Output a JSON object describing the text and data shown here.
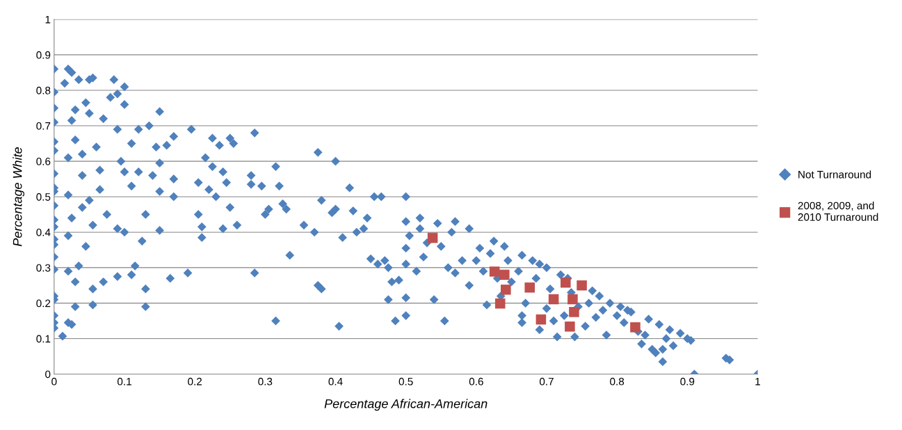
{
  "chart_data": {
    "type": "scatter",
    "xlabel": "Percentage African-American",
    "ylabel": "Percentage White",
    "xlim": [
      0,
      1
    ],
    "ylim": [
      0,
      1
    ],
    "xticks": [
      0,
      0.1,
      0.2,
      0.3,
      0.4,
      0.5,
      0.6,
      0.7,
      0.8,
      0.9,
      1
    ],
    "yticks": [
      0,
      0.1,
      0.2,
      0.3,
      0.4,
      0.5,
      0.6,
      0.7,
      0.8,
      0.9,
      1
    ],
    "grid": "y",
    "legend": "right",
    "series": [
      {
        "name": "Not Turnaround",
        "color": "#4f81bd",
        "marker": "diamond",
        "x": [
          0,
          0,
          0,
          0,
          0,
          0,
          0,
          0,
          0,
          0,
          0,
          0,
          0,
          0,
          0,
          0,
          0,
          0,
          0,
          0,
          0,
          0.015,
          0.02,
          0.025,
          0.02,
          0.02,
          0.025,
          0.03,
          0.03,
          0.025,
          0.02,
          0.02,
          0.02,
          0.025,
          0.012,
          0.03,
          0.03,
          0.035,
          0.035,
          0.04,
          0.04,
          0.04,
          0.045,
          0.045,
          0.05,
          0.055,
          0.05,
          0.05,
          0.055,
          0.055,
          0.055,
          0.06,
          0.065,
          0.065,
          0.07,
          0.07,
          0.075,
          0.08,
          0.085,
          0.09,
          0.09,
          0.095,
          0.09,
          0.09,
          0.1,
          0.1,
          0.1,
          0.1,
          0.11,
          0.11,
          0.11,
          0.115,
          0.12,
          0.12,
          0.125,
          0.13,
          0.13,
          0.13,
          0.135,
          0.14,
          0.145,
          0.15,
          0.15,
          0.15,
          0.15,
          0.16,
          0.165,
          0.17,
          0.17,
          0.17,
          0.19,
          0.195,
          0.205,
          0.205,
          0.21,
          0.21,
          0.215,
          0.22,
          0.225,
          0.225,
          0.23,
          0.235,
          0.24,
          0.24,
          0.245,
          0.25,
          0.25,
          0.255,
          0.26,
          0.28,
          0.28,
          0.285,
          0.285,
          0.295,
          0.3,
          0.305,
          0.315,
          0.315,
          0.32,
          0.325,
          0.33,
          0.335,
          0.355,
          0.37,
          0.375,
          0.375,
          0.38,
          0.38,
          0.395,
          0.4,
          0.4,
          0.405,
          0.41,
          0.42,
          0.425,
          0.43,
          0.44,
          0.445,
          0.45,
          0.455,
          0.46,
          0.465,
          0.47,
          0.475,
          0.475,
          0.48,
          0.485,
          0.49,
          0.5,
          0.5,
          0.5,
          0.5,
          0.5,
          0.5,
          0.505,
          0.515,
          0.52,
          0.52,
          0.525,
          0.53,
          0.54,
          0.545,
          0.55,
          0.555,
          0.56,
          0.565,
          0.57,
          0.57,
          0.58,
          0.59,
          0.59,
          0.6,
          0.605,
          0.61,
          0.615,
          0.62,
          0.625,
          0.63,
          0.635,
          0.64,
          0.645,
          0.65,
          0.66,
          0.665,
          0.665,
          0.665,
          0.67,
          0.68,
          0.685,
          0.69,
          0.69,
          0.7,
          0.7,
          0.705,
          0.71,
          0.715,
          0.72,
          0.725,
          0.73,
          0.735,
          0.74,
          0.745,
          0.755,
          0.76,
          0.765,
          0.77,
          0.775,
          0.78,
          0.785,
          0.79,
          0.8,
          0.805,
          0.81,
          0.815,
          0.82,
          0.83,
          0.835,
          0.84,
          0.845,
          0.85,
          0.855,
          0.86,
          0.865,
          0.865,
          0.87,
          0.875,
          0.88,
          0.89,
          0.9,
          0.905,
          0.91,
          0.955,
          0.96,
          1
        ],
        "values": [
          0.86,
          0.795,
          0.75,
          0.71,
          0.655,
          0.63,
          0.565,
          0.525,
          0.515,
          0.475,
          0.435,
          0.415,
          0.38,
          0.365,
          0.33,
          0.295,
          0.22,
          0.21,
          0.165,
          0.145,
          0.13,
          0.82,
          0.86,
          0.85,
          0.61,
          0.505,
          0.715,
          0.745,
          0.66,
          0.44,
          0.39,
          0.29,
          0.145,
          0.14,
          0.107,
          0.19,
          0.26,
          0.305,
          0.83,
          0.62,
          0.56,
          0.47,
          0.36,
          0.765,
          0.83,
          0.835,
          0.735,
          0.49,
          0.42,
          0.24,
          0.195,
          0.64,
          0.575,
          0.52,
          0.72,
          0.26,
          0.45,
          0.78,
          0.83,
          0.79,
          0.69,
          0.6,
          0.41,
          0.275,
          0.81,
          0.76,
          0.57,
          0.4,
          0.28,
          0.65,
          0.53,
          0.305,
          0.69,
          0.57,
          0.375,
          0.45,
          0.24,
          0.19,
          0.7,
          0.56,
          0.64,
          0.74,
          0.595,
          0.515,
          0.405,
          0.645,
          0.27,
          0.67,
          0.5,
          0.55,
          0.285,
          0.69,
          0.54,
          0.45,
          0.415,
          0.385,
          0.61,
          0.52,
          0.665,
          0.585,
          0.5,
          0.645,
          0.57,
          0.41,
          0.54,
          0.665,
          0.47,
          0.65,
          0.42,
          0.56,
          0.535,
          0.68,
          0.285,
          0.53,
          0.45,
          0.465,
          0.585,
          0.15,
          0.53,
          0.48,
          0.465,
          0.335,
          0.42,
          0.4,
          0.625,
          0.25,
          0.24,
          0.49,
          0.455,
          0.6,
          0.465,
          0.135,
          0.385,
          0.525,
          0.46,
          0.4,
          0.41,
          0.44,
          0.325,
          0.5,
          0.31,
          0.5,
          0.32,
          0.21,
          0.3,
          0.26,
          0.15,
          0.265,
          0.5,
          0.43,
          0.355,
          0.31,
          0.215,
          0.165,
          0.39,
          0.29,
          0.44,
          0.41,
          0.33,
          0.37,
          0.21,
          0.425,
          0.36,
          0.15,
          0.3,
          0.4,
          0.43,
          0.285,
          0.32,
          0.41,
          0.25,
          0.32,
          0.355,
          0.29,
          0.195,
          0.34,
          0.375,
          0.27,
          0.22,
          0.36,
          0.32,
          0.26,
          0.29,
          0.145,
          0.165,
          0.335,
          0.2,
          0.32,
          0.27,
          0.125,
          0.31,
          0.3,
          0.185,
          0.24,
          0.15,
          0.105,
          0.28,
          0.165,
          0.27,
          0.23,
          0.105,
          0.19,
          0.135,
          0.2,
          0.235,
          0.16,
          0.22,
          0.18,
          0.11,
          0.2,
          0.165,
          0.19,
          0.145,
          0.18,
          0.175,
          0.12,
          0.085,
          0.11,
          0.155,
          0.07,
          0.06,
          0.14,
          0.035,
          0.07,
          0.1,
          0.125,
          0.08,
          0.115,
          0.1,
          0.095,
          0.0,
          0.045,
          0.04,
          0.0
        ]
      },
      {
        "name": "2008, 2009, and\n2010 Turnaround",
        "color": "#c0504d",
        "marker": "square",
        "x": [
          0.538,
          0.626,
          0.64,
          0.634,
          0.642,
          0.676,
          0.727,
          0.75,
          0.71,
          0.737,
          0.739,
          0.692,
          0.733,
          0.826
        ],
        "values": [
          0.384,
          0.289,
          0.28,
          0.199,
          0.238,
          0.244,
          0.258,
          0.25,
          0.211,
          0.211,
          0.175,
          0.154,
          0.134,
          0.132
        ]
      }
    ]
  }
}
